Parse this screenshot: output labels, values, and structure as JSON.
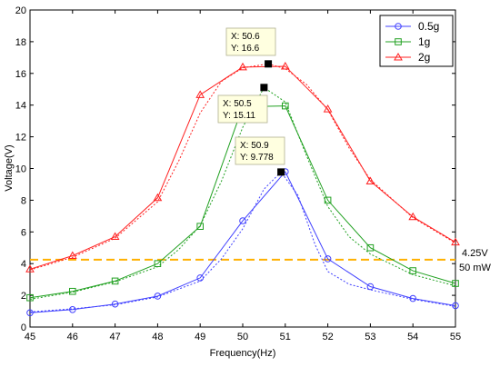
{
  "chart_data": {
    "type": "line",
    "xlabel": "Frequency(Hz)",
    "ylabel": "Voltage(V)",
    "xlim": [
      45,
      55
    ],
    "ylim": [
      0,
      20
    ],
    "x_ticks": [
      45,
      46,
      47,
      48,
      49,
      50,
      51,
      52,
      53,
      54,
      55
    ],
    "y_ticks": [
      0,
      2,
      4,
      6,
      8,
      10,
      12,
      14,
      16,
      18,
      20
    ],
    "x": [
      45,
      46,
      47,
      48,
      49,
      50,
      51,
      52,
      53,
      54,
      55
    ],
    "series": [
      {
        "name": "0.5g",
        "marker": "circle",
        "color": "#4040ff",
        "values": [
          0.9,
          1.1,
          1.45,
          1.95,
          3.1,
          6.7,
          9.8,
          4.3,
          2.55,
          1.8,
          1.35
        ],
        "fit": [
          [
            45,
            0.95
          ],
          [
            46,
            1.15
          ],
          [
            47,
            1.4
          ],
          [
            48,
            1.9
          ],
          [
            49,
            2.9
          ],
          [
            49.5,
            4.3
          ],
          [
            50,
            6.2
          ],
          [
            50.5,
            8.7
          ],
          [
            50.9,
            9.78
          ],
          [
            51.3,
            8.3
          ],
          [
            51.7,
            5.2
          ],
          [
            52,
            3.5
          ],
          [
            52.5,
            2.7
          ],
          [
            53,
            2.35
          ],
          [
            54,
            1.75
          ],
          [
            55,
            1.3
          ]
        ]
      },
      {
        "name": "1g",
        "marker": "square",
        "color": "#20a020",
        "values": [
          1.85,
          2.25,
          2.9,
          4.0,
          6.35,
          13.9,
          13.95,
          8.0,
          5.0,
          3.55,
          2.75
        ],
        "fit": [
          [
            45,
            1.75
          ],
          [
            46,
            2.2
          ],
          [
            47,
            2.85
          ],
          [
            48,
            3.8
          ],
          [
            48.5,
            4.9
          ],
          [
            49,
            6.4
          ],
          [
            49.5,
            9.2
          ],
          [
            50,
            12.6
          ],
          [
            50.5,
            15.11
          ],
          [
            51,
            14.2
          ],
          [
            51.5,
            10.8
          ],
          [
            52,
            7.6
          ],
          [
            52.5,
            5.7
          ],
          [
            53,
            4.6
          ],
          [
            54,
            3.3
          ],
          [
            55,
            2.6
          ]
        ]
      },
      {
        "name": "2g",
        "marker": "triangle",
        "color": "#ff2020",
        "values": [
          3.65,
          4.5,
          5.7,
          8.15,
          14.65,
          16.4,
          16.45,
          13.75,
          9.2,
          6.95,
          5.35
        ],
        "fit": [
          [
            45,
            3.6
          ],
          [
            46,
            4.4
          ],
          [
            47,
            5.6
          ],
          [
            48,
            7.9
          ],
          [
            48.5,
            10.5
          ],
          [
            49,
            13.5
          ],
          [
            49.5,
            15.5
          ],
          [
            50,
            16.35
          ],
          [
            50.6,
            16.6
          ],
          [
            51,
            16.3
          ],
          [
            51.5,
            15.3
          ],
          [
            52,
            13.7
          ],
          [
            52.5,
            11.3
          ],
          [
            53,
            9.3
          ],
          [
            54,
            6.9
          ],
          [
            55,
            5.3
          ]
        ]
      }
    ],
    "datatips": [
      {
        "x_text": "X: 50.6",
        "y_text": "Y: 16.6",
        "x": 50.6,
        "y": 16.6
      },
      {
        "x_text": "X: 50.5",
        "y_text": "Y: 15.11",
        "x": 50.5,
        "y": 15.11
      },
      {
        "x_text": "X: 50.9",
        "y_text": "Y: 9.778",
        "x": 50.9,
        "y": 9.778
      }
    ],
    "threshold": {
      "y": 4.25,
      "color": "#ffb000",
      "label_line1": "4.25V",
      "label_line2": "50 mW"
    },
    "legend_position": "top-right",
    "grid": false
  }
}
